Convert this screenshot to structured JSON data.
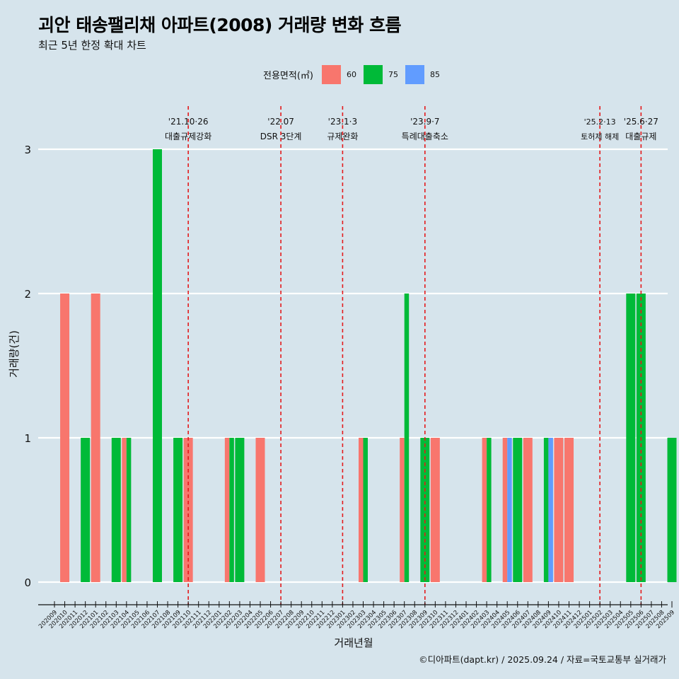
{
  "title": "괴안 태송팰리채 아파트(2008) 거래량 변화 흐름",
  "subtitle": "최근 5년 한정 확대 차트",
  "legend": {
    "title": "전용면적(㎡)",
    "items": [
      {
        "label": "60",
        "color": "#f8766d"
      },
      {
        "label": "75",
        "color": "#00ba38"
      },
      {
        "label": "85",
        "color": "#619cff"
      }
    ]
  },
  "caption": "©디아파트(dapt.kr) / 2025.09.24 / 자료=국토교통부 실거래가",
  "chart_data": {
    "type": "bar",
    "title": "괴안 태송팰리채 아파트(2008) 거래량 변화 흐름",
    "xlabel": "거래년월",
    "ylabel": "거래량(건)",
    "ylim": [
      0,
      3
    ],
    "yticks": [
      0,
      1,
      2,
      3
    ],
    "categories": [
      "202009",
      "202010",
      "202011",
      "202012",
      "202101",
      "202102",
      "202103",
      "202104",
      "202105",
      "202106",
      "202107",
      "202108",
      "202109",
      "202110",
      "202111",
      "202112",
      "202201",
      "202202",
      "202203",
      "202204",
      "202205",
      "202206",
      "202207",
      "202208",
      "202209",
      "202210",
      "202211",
      "202212",
      "202301",
      "202302",
      "202303",
      "202304",
      "202305",
      "202306",
      "202307",
      "202308",
      "202309",
      "202310",
      "202311",
      "202312",
      "202401",
      "202402",
      "202403",
      "202404",
      "202405",
      "202406",
      "202407",
      "202408",
      "202409",
      "202410",
      "202411",
      "202412",
      "202501",
      "202502",
      "202503",
      "202504",
      "202505",
      "202506",
      "202507",
      "202508",
      "202509"
    ],
    "series": [
      {
        "name": "60",
        "color": "#f8766d",
        "values": [
          0,
          2,
          0,
          0,
          2,
          0,
          0,
          1,
          0,
          0,
          0,
          0,
          0,
          1,
          0,
          0,
          0,
          1,
          0,
          0,
          1,
          0,
          0,
          0,
          0,
          0,
          0,
          0,
          0,
          0,
          1,
          0,
          0,
          0,
          1,
          0,
          0,
          1,
          0,
          0,
          0,
          0,
          1,
          0,
          1,
          0,
          1,
          0,
          0,
          1,
          1,
          0,
          0,
          0,
          0,
          0,
          0,
          0,
          0,
          0,
          0
        ]
      },
      {
        "name": "75",
        "color": "#00ba38",
        "values": [
          0,
          0,
          0,
          1,
          0,
          0,
          1,
          1,
          0,
          0,
          3,
          0,
          1,
          0,
          0,
          0,
          0,
          1,
          1,
          0,
          0,
          0,
          0,
          0,
          0,
          0,
          0,
          0,
          0,
          0,
          1,
          0,
          0,
          0,
          2,
          0,
          1,
          0,
          0,
          0,
          0,
          0,
          1,
          0,
          0,
          1,
          0,
          0,
          1,
          0,
          0,
          0,
          0,
          0,
          0,
          0,
          2,
          2,
          0,
          0,
          1
        ]
      },
      {
        "name": "85",
        "color": "#619cff",
        "values": [
          0,
          0,
          0,
          0,
          0,
          0,
          0,
          0,
          0,
          0,
          0,
          0,
          0,
          0,
          0,
          0,
          0,
          0,
          0,
          0,
          0,
          0,
          0,
          0,
          0,
          0,
          0,
          0,
          0,
          0,
          0,
          0,
          0,
          0,
          0,
          0,
          0,
          0,
          0,
          0,
          0,
          0,
          0,
          0,
          1,
          0,
          0,
          0,
          1,
          0,
          0,
          0,
          0,
          0,
          0,
          0,
          0,
          0,
          0,
          0,
          0
        ]
      }
    ],
    "events": [
      {
        "month": "202110",
        "date": "'21.10·26",
        "label": "대출규제강화"
      },
      {
        "month": "202207",
        "date": "'22.07",
        "label": "DSR 3단계"
      },
      {
        "month": "202301",
        "date": "'23.1·3",
        "label": "규제완화"
      },
      {
        "month": "202309",
        "date": "'23.9·7",
        "label": "특례대출축소"
      },
      {
        "month": "202502",
        "date": "'25.2·13",
        "label": "토허제 해제"
      },
      {
        "month": "202506",
        "date": "'25.6·27",
        "label": "대출규제"
      }
    ]
  }
}
